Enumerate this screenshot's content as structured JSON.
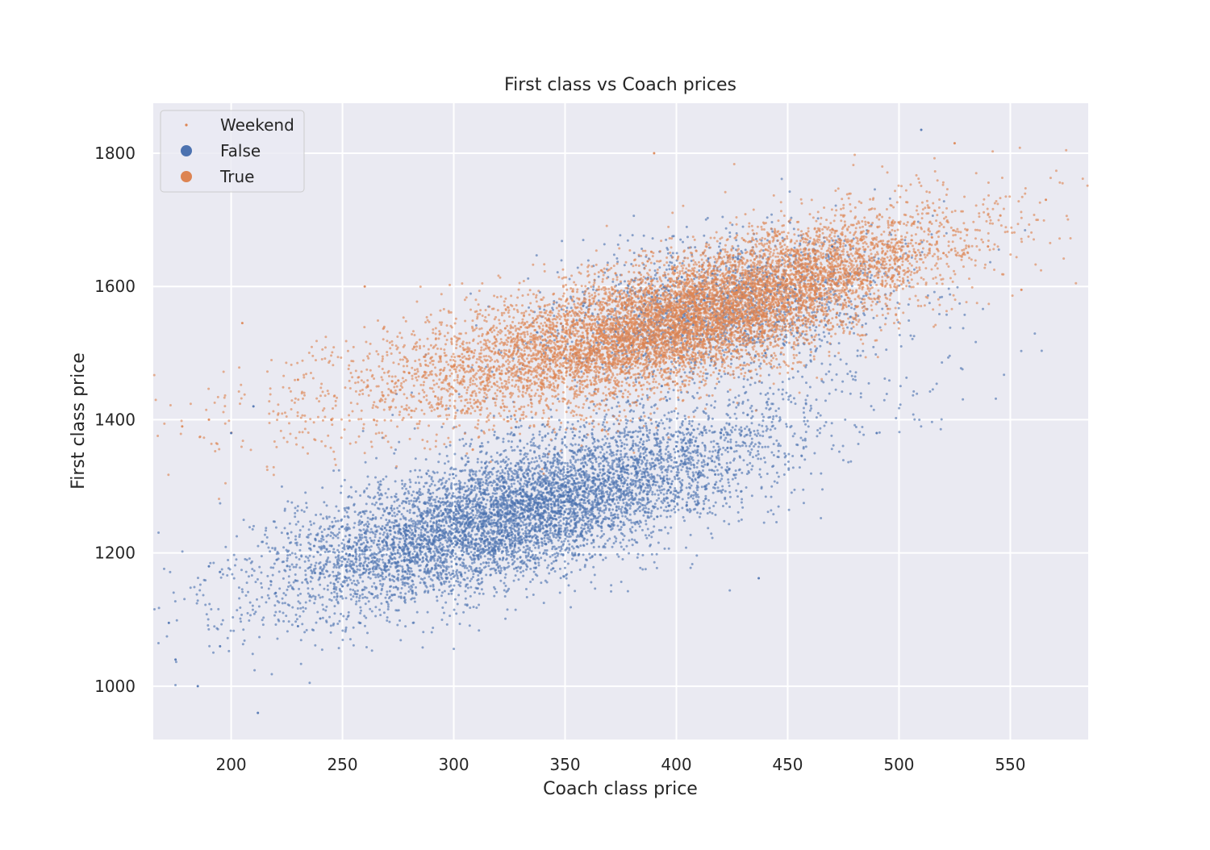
{
  "chart_data": {
    "type": "scatter",
    "title": "First class vs Coach prices",
    "xlabel": "Coach class price",
    "ylabel": "First class price",
    "xlim": [
      165,
      585
    ],
    "ylim": [
      920,
      1875
    ],
    "x_ticks": [
      200,
      250,
      300,
      350,
      400,
      450,
      500,
      550
    ],
    "y_ticks": [
      1000,
      1200,
      1400,
      1600,
      1800
    ],
    "grid": true,
    "legend": {
      "placement": "upper-left",
      "title": "Weekend",
      "entries": [
        {
          "label": "False",
          "color": "#4c72b0"
        },
        {
          "label": "True",
          "color": "#dd8452"
        }
      ]
    },
    "series": [
      {
        "name": "False",
        "color": "#4c72b0",
        "summary_points": [
          [
            172,
            1095
          ],
          [
            175,
            1040
          ],
          [
            185,
            1000
          ],
          [
            190,
            1180
          ],
          [
            195,
            1060
          ],
          [
            200,
            1380
          ],
          [
            210,
            1420
          ],
          [
            212,
            960
          ],
          [
            220,
            1140
          ],
          [
            230,
            1090
          ],
          [
            240,
            1170
          ],
          [
            250,
            1150
          ],
          [
            260,
            1230
          ],
          [
            270,
            1180
          ],
          [
            280,
            1200
          ],
          [
            290,
            1240
          ],
          [
            300,
            1250
          ],
          [
            310,
            1270
          ],
          [
            320,
            1255
          ],
          [
            330,
            1290
          ],
          [
            340,
            1280
          ],
          [
            350,
            1300
          ],
          [
            360,
            1310
          ],
          [
            370,
            1320
          ],
          [
            380,
            1290
          ],
          [
            390,
            1330
          ],
          [
            400,
            1360
          ],
          [
            410,
            1320
          ],
          [
            420,
            1380
          ],
          [
            437,
            1162
          ],
          [
            440,
            1500
          ],
          [
            450,
            1580
          ],
          [
            470,
            1660
          ],
          [
            490,
            1380
          ],
          [
            510,
            1835
          ]
        ]
      },
      {
        "name": "True",
        "color": "#dd8452",
        "summary_points": [
          [
            178,
            1390
          ],
          [
            190,
            1400
          ],
          [
            205,
            1545
          ],
          [
            230,
            1460
          ],
          [
            245,
            1400
          ],
          [
            260,
            1600
          ],
          [
            280,
            1470
          ],
          [
            300,
            1480
          ],
          [
            320,
            1500
          ],
          [
            340,
            1510
          ],
          [
            360,
            1530
          ],
          [
            380,
            1540
          ],
          [
            390,
            1800
          ],
          [
            400,
            1560
          ],
          [
            420,
            1570
          ],
          [
            440,
            1580
          ],
          [
            460,
            1600
          ],
          [
            480,
            1620
          ],
          [
            500,
            1640
          ],
          [
            520,
            1650
          ],
          [
            525,
            1815
          ],
          [
            540,
            1660
          ],
          [
            555,
            1595
          ],
          [
            566,
            1730
          ]
        ]
      }
    ]
  }
}
